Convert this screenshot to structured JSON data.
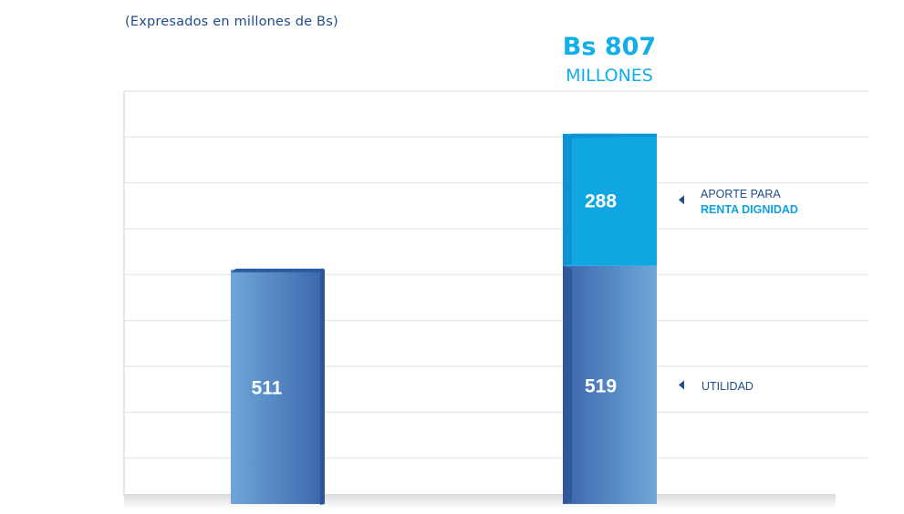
{
  "subtitle": "(Expresados en millones de Bs)",
  "total": {
    "value": "Bs 807",
    "unit": "MILLONES"
  },
  "legend": {
    "aporte_line1": "APORTE PARA",
    "aporte_line2": "RENTA DIGNIDAD",
    "utilidad": "UTILIDAD"
  },
  "colors": {
    "utilidad": "#3f6fb0",
    "aporte": "#0fa6e2",
    "text_dark": "#1f4e89",
    "text_accent": "#12aee8",
    "grid": "#e3e5e8"
  },
  "chart_data": {
    "type": "bar",
    "stacked": true,
    "categories": [
      "",
      ""
    ],
    "series": [
      {
        "name": "UTILIDAD",
        "values": [
          511,
          519
        ]
      },
      {
        "name": "APORTE PARA RENTA DIGNIDAD",
        "values": [
          0,
          288
        ]
      }
    ],
    "data_labels": [
      "511",
      "519",
      "288"
    ],
    "ylim": [
      0,
      900
    ],
    "grid": true,
    "legend_position": "right"
  }
}
